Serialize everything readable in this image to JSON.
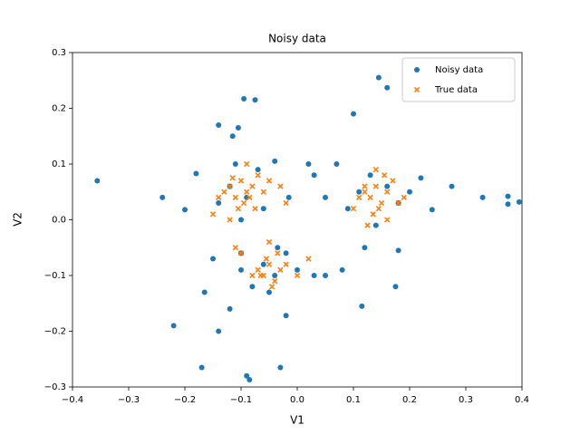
{
  "chart_data": {
    "type": "scatter",
    "title": "Noisy data",
    "x_label": "V1",
    "y_label": "V2",
    "xlim": [
      -0.4,
      0.4
    ],
    "ylim": [
      -0.3,
      0.3
    ],
    "xticks": [
      {
        "value": -0.4,
        "label": "−0.4"
      },
      {
        "value": -0.3,
        "label": "−0.3"
      },
      {
        "value": -0.2,
        "label": "−0.2"
      },
      {
        "value": -0.1,
        "label": "−0.1"
      },
      {
        "value": 0,
        "label": "0.0"
      },
      0.1,
      0.2,
      0.3,
      0.4
    ],
    "yticks": [
      {
        "value": -0.3,
        "label": "−0.3"
      },
      {
        "value": -0.2,
        "label": "−0.2"
      },
      {
        "value": -0.1,
        "label": "−0.1"
      },
      {
        "value": 0,
        "label": "0.0"
      },
      0.1,
      0.2,
      0.3
    ],
    "legend": "upper right",
    "grid": false,
    "series": [
      {
        "name": "Noisy data",
        "color": "#1f77b4",
        "marker": "o",
        "x": [
          -0.356,
          -0.24,
          -0.22,
          -0.17,
          -0.14,
          -0.095,
          -0.075,
          -0.14,
          -0.115,
          -0.105,
          0.1,
          0.145,
          0.16,
          0.375,
          0.375,
          0.395,
          0.33,
          0.275,
          0.24,
          -0.09,
          -0.085,
          -0.03,
          -0.02,
          0.115,
          0.175,
          -0.165,
          -0.15,
          -0.18,
          -0.2,
          -0.11,
          -0.07,
          -0.04,
          -0.12,
          -0.09,
          -0.06,
          -0.1,
          -0.14,
          0.02,
          0.03,
          0.07,
          0.05,
          0.09,
          0.13,
          0.16,
          0.18,
          0.14,
          0.12,
          0.18,
          0.11,
          0.2,
          0.22,
          -0.06,
          -0.04,
          -0.02,
          0,
          -0.08,
          -0.1,
          0.03,
          0.05,
          -0.05,
          -0.12,
          -0.1,
          0.08,
          -0.035,
          -0.015
        ],
        "y": [
          0.07,
          0.04,
          -0.19,
          -0.265,
          -0.2,
          0.217,
          0.215,
          0.17,
          0.15,
          0.165,
          0.19,
          0.255,
          0.237,
          0.042,
          0.028,
          0.032,
          0.04,
          0.06,
          0.018,
          -0.28,
          -0.287,
          -0.265,
          -0.172,
          -0.155,
          -0.12,
          -0.13,
          -0.07,
          0.083,
          0.018,
          0.1,
          0.09,
          0.105,
          0.06,
          0.04,
          0.02,
          0,
          0.03,
          0.1,
          0.08,
          0.1,
          0.04,
          0.02,
          0.08,
          0.06,
          0.03,
          -0.01,
          -0.05,
          -0.055,
          0.05,
          0.05,
          0.075,
          -0.08,
          -0.1,
          -0.06,
          -0.09,
          -0.12,
          -0.09,
          -0.1,
          -0.1,
          -0.13,
          -0.16,
          -0.06,
          -0.09,
          -0.05,
          0.04
        ]
      },
      {
        "name": "True data",
        "color": "#ff7f0e",
        "marker": "x",
        "x": [
          -0.13,
          -0.12,
          -0.11,
          -0.1,
          -0.09,
          -0.08,
          -0.105,
          -0.095,
          -0.085,
          -0.115,
          -0.075,
          -0.06,
          -0.14,
          -0.15,
          -0.07,
          -0.09,
          -0.12,
          -0.05,
          -0.03,
          -0.02,
          0.12,
          0.13,
          0.14,
          0.15,
          0.16,
          0.17,
          0.135,
          0.145,
          0.155,
          0.125,
          0.11,
          0.18,
          0.1,
          0.14,
          0.16,
          0.19,
          0.12,
          -0.07,
          -0.06,
          -0.05,
          -0.04,
          -0.03,
          -0.055,
          -0.045,
          -0.065,
          -0.02,
          -0.08,
          -0.035,
          -0.1,
          0,
          0.02,
          -0.11,
          -0.05
        ],
        "y": [
          0.05,
          0.06,
          0.04,
          0.07,
          0.05,
          0.06,
          0.02,
          0.03,
          0.04,
          0.075,
          0.02,
          0.05,
          0.04,
          0.01,
          0.08,
          0.1,
          0.0,
          0.07,
          0.06,
          0.03,
          0.05,
          0.04,
          0.06,
          0.03,
          0.05,
          0.07,
          0.01,
          0.02,
          0.08,
          -0.01,
          0.04,
          0.03,
          0.02,
          0.09,
          0.0,
          0.04,
          0.06,
          -0.09,
          -0.1,
          -0.08,
          -0.11,
          -0.09,
          -0.07,
          -0.12,
          -0.1,
          -0.08,
          -0.1,
          -0.06,
          -0.06,
          -0.1,
          -0.07,
          -0.05,
          -0.04
        ]
      }
    ]
  }
}
